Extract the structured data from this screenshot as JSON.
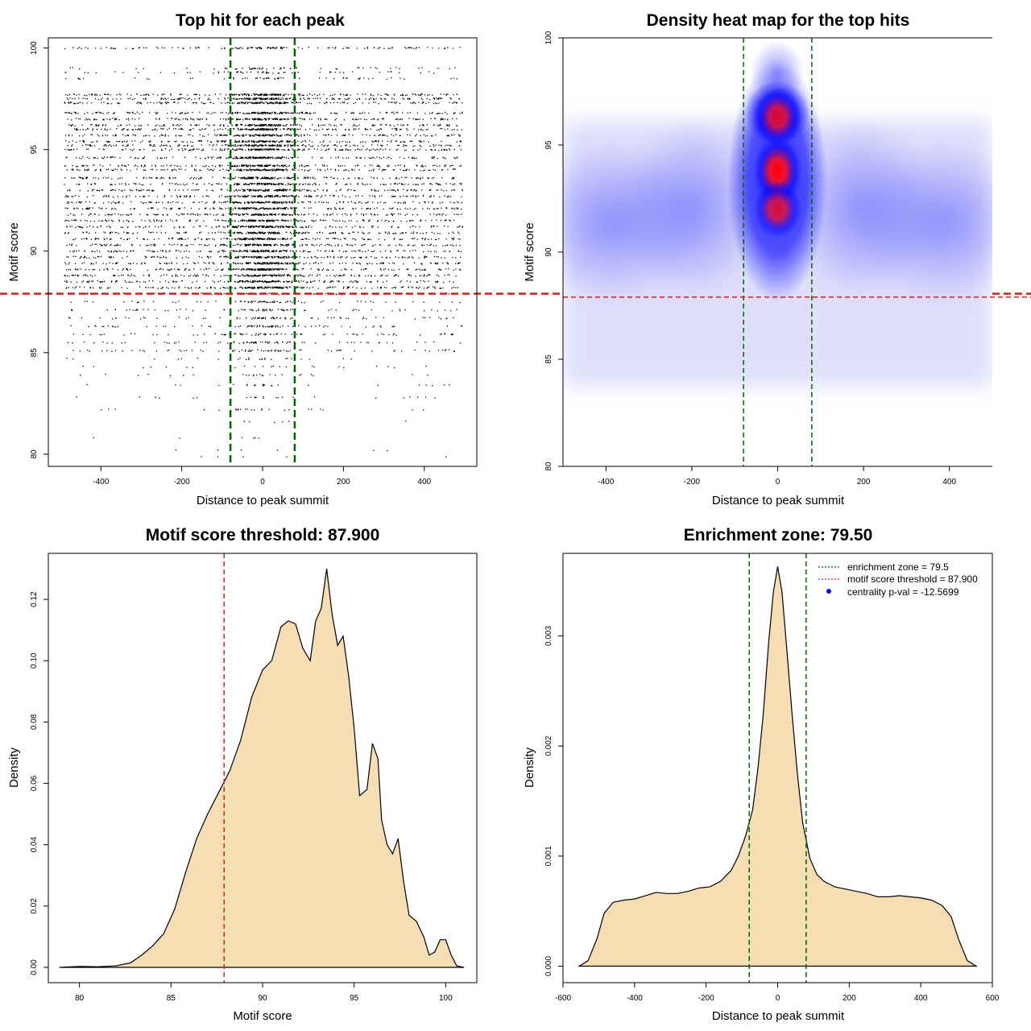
{
  "colors": {
    "density_fill": "#f5deb3",
    "threshold_line": "#cc2222",
    "zone_line": "#006400",
    "heat_low": "#ffffff",
    "heat_mid": "#0000ff",
    "heat_high": "#ff0000",
    "point": "#000000",
    "legend_dot": "#0000ff"
  },
  "chart_data": [
    {
      "type": "scatter",
      "title": "Top hit for each peak",
      "xlabel": "Distance to peak summit",
      "ylabel": "Motif score",
      "xlim": [
        -530,
        530
      ],
      "ylim": [
        79.4,
        100.5
      ],
      "xticks": [
        -400,
        -200,
        0,
        200,
        400
      ],
      "yticks": [
        80,
        85,
        90,
        95,
        100
      ],
      "x_range_points": [
        -490,
        495
      ],
      "vlines": [
        -79.5,
        79.5
      ],
      "hline": 87.9,
      "score_levels": [
        100,
        99,
        98.8,
        98.5,
        97.7,
        97.5,
        97.3,
        96.8,
        96.5,
        96.2,
        96.0,
        95.7,
        95.4,
        95.2,
        95.0,
        94.6,
        94.2,
        94.0,
        93.6,
        93.3,
        93.0,
        92.7,
        92.4,
        92.1,
        91.8,
        91.5,
        91.2,
        90.9,
        90.6,
        90.3,
        90.0,
        89.7,
        89.4,
        89.1,
        88.8,
        88.5,
        88.2,
        87.9,
        87.5,
        87.1,
        86.7,
        86.3,
        85.9,
        85.5,
        85.1,
        84.7,
        84.3,
        83.9,
        83.4,
        82.8,
        82.2,
        81.6,
        80.8,
        80.2,
        79.9
      ]
    },
    {
      "type": "heatmap",
      "title": "Density heat map for the top hits",
      "xlabel": "Distance to peak summit",
      "ylabel": "Motif score",
      "xlim": [
        -500,
        500
      ],
      "ylim": [
        80,
        100
      ],
      "xticks": [
        -400,
        -200,
        0,
        200,
        400
      ],
      "yticks": [
        80,
        85,
        90,
        95,
        100
      ],
      "vlines": [
        -79.5,
        79.5
      ],
      "hline": 87.9,
      "hotspots": [
        {
          "x": 0,
          "y": 93.8,
          "intensity": 1.0
        },
        {
          "x": 0,
          "y": 96.3,
          "intensity": 0.85
        },
        {
          "x": 0,
          "y": 92.0,
          "intensity": 0.8
        }
      ]
    },
    {
      "type": "area",
      "title": "Motif score threshold: 87.900",
      "xlabel": "Motif score",
      "ylabel": "Density",
      "xlim": [
        78.3,
        101.7
      ],
      "ylim": [
        -0.005,
        0.135
      ],
      "xticks": [
        80,
        85,
        90,
        95,
        100
      ],
      "yticks": [
        0.0,
        0.02,
        0.04,
        0.06,
        0.08,
        0.1,
        0.12
      ],
      "ytick_labels": [
        "0.00",
        "0.02",
        "0.04",
        "0.06",
        "0.08",
        "0.10",
        "0.12"
      ],
      "vline": 87.9,
      "x": [
        78.9,
        80,
        81,
        82,
        82.8,
        83.4,
        84,
        84.6,
        85.2,
        85.8,
        86.4,
        87,
        87.6,
        88.2,
        88.8,
        89.4,
        90,
        90.5,
        91,
        91.4,
        91.8,
        92.2,
        92.6,
        92.9,
        93.2,
        93.5,
        93.8,
        94.1,
        94.4,
        94.7,
        95,
        95.3,
        95.7,
        96,
        96.3,
        96.5,
        96.8,
        97.1,
        97.4,
        97.7,
        98,
        98.4,
        98.8,
        99.1,
        99.4,
        99.7,
        100,
        100.3,
        100.6,
        101.0
      ],
      "y": [
        0.0,
        0.0003,
        0.0002,
        0.0005,
        0.0015,
        0.004,
        0.007,
        0.011,
        0.019,
        0.031,
        0.042,
        0.05,
        0.057,
        0.064,
        0.074,
        0.088,
        0.097,
        0.1,
        0.111,
        0.113,
        0.112,
        0.104,
        0.1,
        0.113,
        0.117,
        0.13,
        0.115,
        0.105,
        0.108,
        0.095,
        0.078,
        0.056,
        0.058,
        0.073,
        0.068,
        0.048,
        0.04,
        0.037,
        0.042,
        0.028,
        0.017,
        0.015,
        0.01,
        0.004,
        0.005,
        0.009,
        0.009,
        0.004,
        0.0005,
        0.0
      ]
    },
    {
      "type": "area",
      "title": "Enrichment zone: 79.50",
      "xlabel": "Distance to peak summit",
      "ylabel": "Density",
      "xlim": [
        -600,
        600
      ],
      "ylim": [
        -0.00015,
        0.00375
      ],
      "xticks": [
        -600,
        -400,
        -200,
        0,
        200,
        400,
        600
      ],
      "yticks": [
        0.0,
        0.001,
        0.002,
        0.003
      ],
      "ytick_labels": [
        "0.000",
        "0.001",
        "0.002",
        "0.003"
      ],
      "vlines": [
        -79.5,
        79.5
      ],
      "x": [
        -555,
        -530,
        -505,
        -485,
        -460,
        -430,
        -400,
        -370,
        -340,
        -310,
        -280,
        -250,
        -220,
        -190,
        -160,
        -130,
        -110,
        -90,
        -70,
        -55,
        -40,
        -25,
        -12,
        0,
        12,
        25,
        40,
        55,
        70,
        90,
        110,
        130,
        160,
        190,
        220,
        250,
        280,
        310,
        340,
        370,
        400,
        430,
        460,
        485,
        505,
        530,
        555
      ],
      "y": [
        0.0,
        5e-05,
        0.00025,
        0.00048,
        0.00058,
        0.0006,
        0.00061,
        0.00064,
        0.00067,
        0.00066,
        0.00066,
        0.00068,
        0.00071,
        0.00072,
        0.00077,
        0.00087,
        0.001,
        0.00118,
        0.00142,
        0.0018,
        0.0023,
        0.00295,
        0.0034,
        0.00363,
        0.0034,
        0.0029,
        0.0023,
        0.00175,
        0.0013,
        0.00098,
        0.00083,
        0.00077,
        0.00072,
        0.0007,
        0.00068,
        0.00066,
        0.00063,
        0.00063,
        0.00064,
        0.00063,
        0.00062,
        0.0006,
        0.00055,
        0.00045,
        0.00025,
        5e-05,
        0.0
      ],
      "legend": {
        "position": "top-right",
        "entries": [
          {
            "label": "enrichment zone = 79.5",
            "style": "dotted",
            "color": "#006400"
          },
          {
            "label": "motif score threshold = 87.900",
            "style": "dotted",
            "color": "#cc2222"
          },
          {
            "label": "centrality p-val = -12.5699",
            "style": "point",
            "color": "#0000ff"
          }
        ]
      }
    }
  ]
}
